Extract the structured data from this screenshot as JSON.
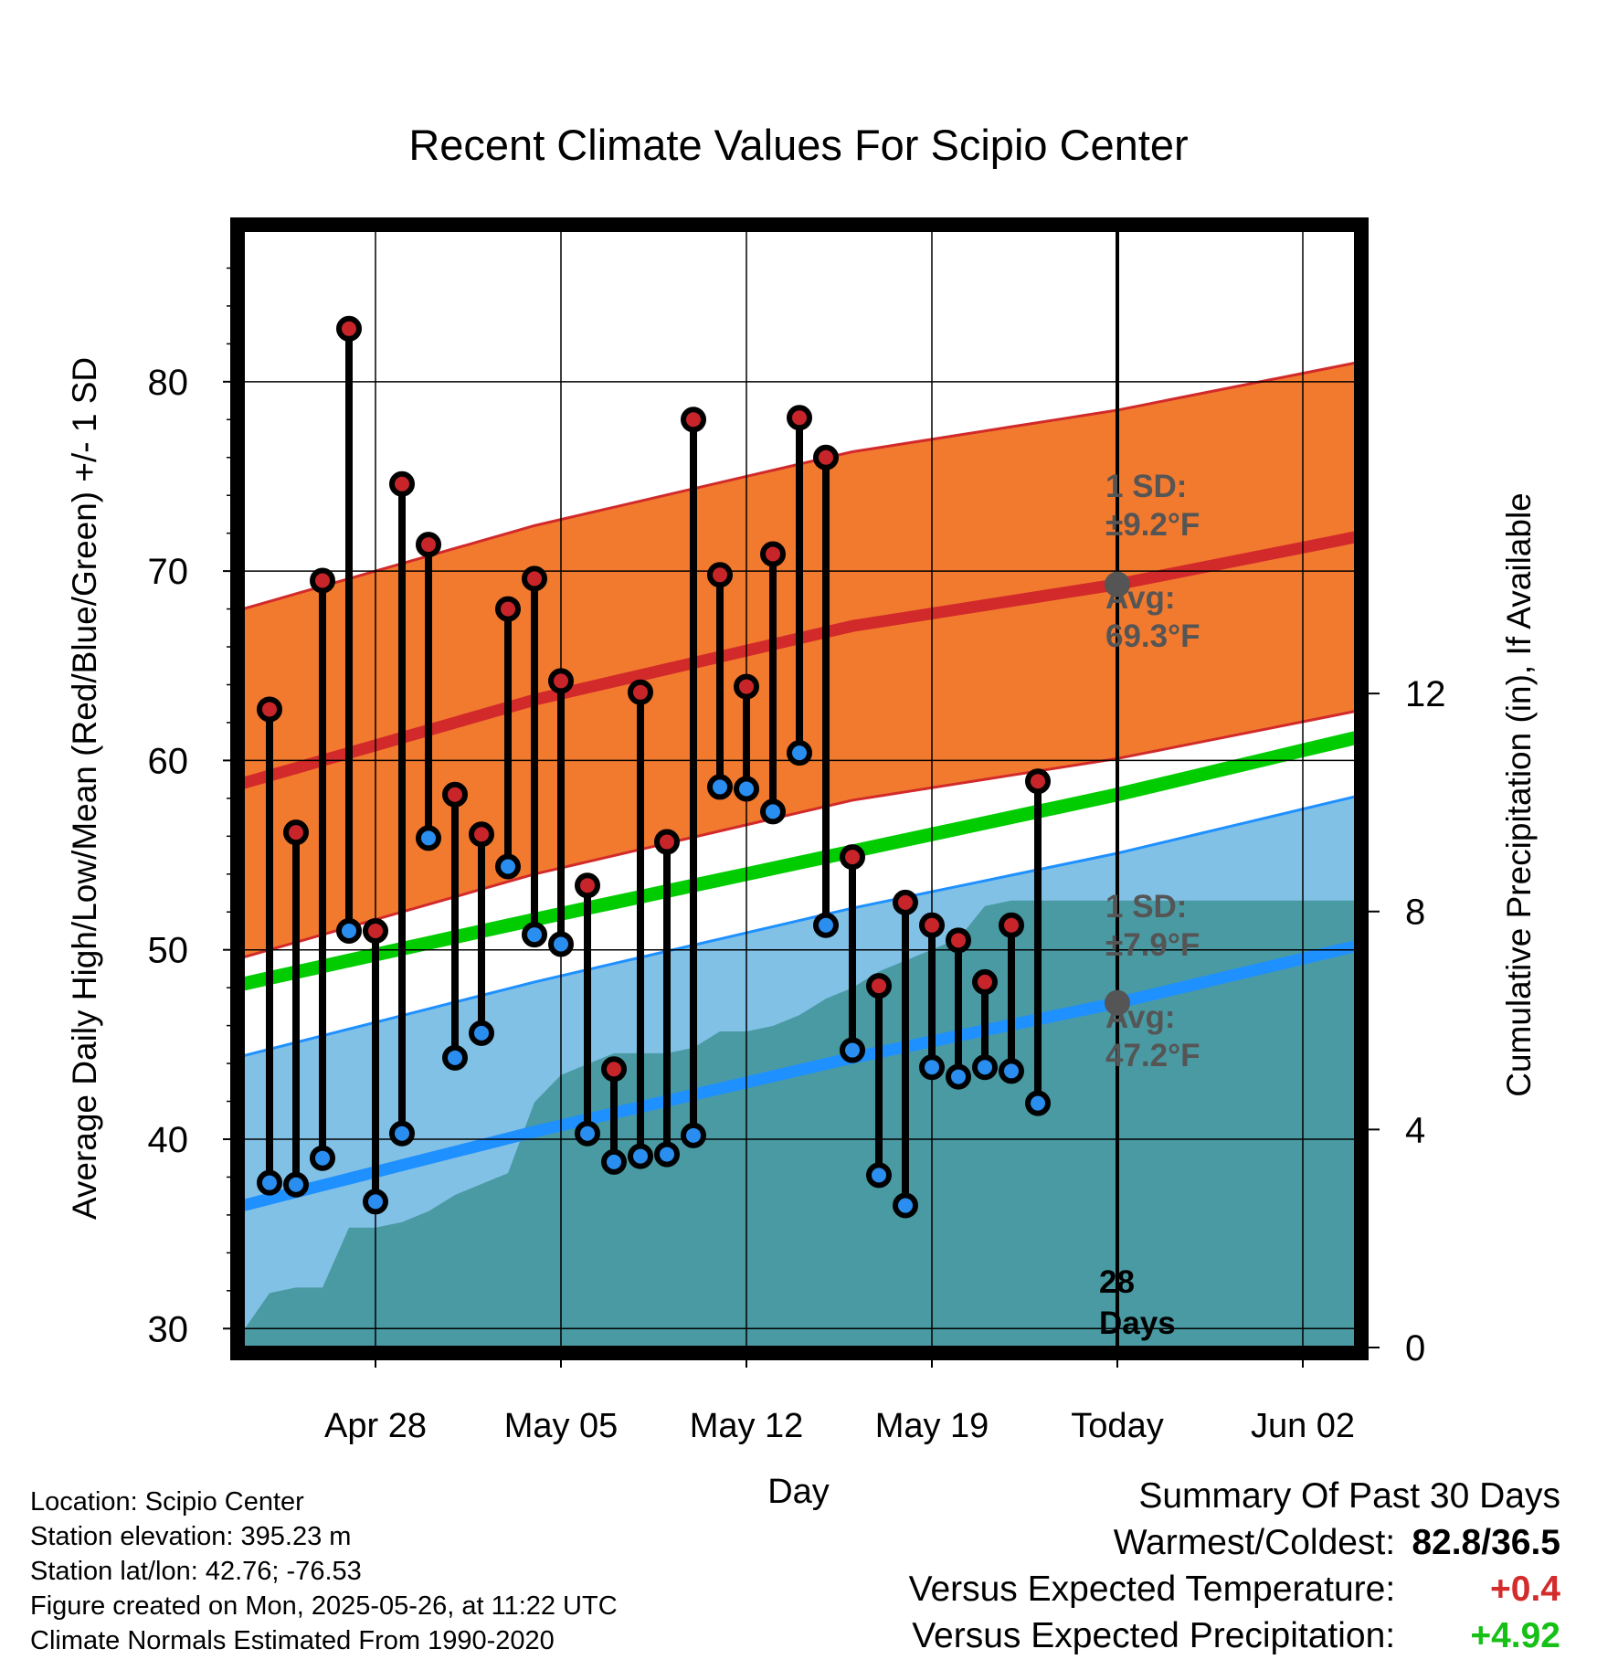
{
  "chart_data": {
    "type": "line",
    "title": "Recent Climate Values For Scipio Center",
    "xlabel": "Day",
    "ylabel": "Average Daily High/Low/Mean (Red/Blue/Green) +/- 1 SD",
    "y2label": "Cumulative Precipitation (in), If Available",
    "x_range": [
      "2025-04-23",
      "2025-06-04"
    ],
    "ylim": [
      29,
      88
    ],
    "y2lim": [
      0,
      20.5
    ],
    "y_ticks": [
      "30",
      "40",
      "50",
      "60",
      "70",
      "80"
    ],
    "y2_ticks": [
      "0",
      "4",
      "8",
      "12"
    ],
    "x_ticks": [
      {
        "date": "2025-04-28",
        "label": "Apr 28"
      },
      {
        "date": "2025-05-05",
        "label": "May 05"
      },
      {
        "date": "2025-05-12",
        "label": "May 12"
      },
      {
        "date": "2025-05-19",
        "label": "May 19"
      },
      {
        "date": "2025-05-26",
        "label": "Today"
      },
      {
        "date": "2025-06-02",
        "label": "Jun 02"
      }
    ],
    "grid": true,
    "normals": {
      "dates": [
        "2025-04-23",
        "2025-05-04",
        "2025-05-16",
        "2025-05-26",
        "2025-06-04"
      ],
      "avg_high": [
        58.8,
        63.2,
        67.1,
        69.3,
        71.8
      ],
      "high_sd": 9.2,
      "avg_mean": [
        48.2,
        51.6,
        55.2,
        58.2,
        61.2
      ],
      "avg_low": [
        36.5,
        40.4,
        44.3,
        47.2,
        50.2
      ],
      "low_sd": 7.9
    },
    "series": [
      {
        "dates": [
          "2025-04-24",
          "2025-04-25",
          "2025-04-26",
          "2025-04-27",
          "2025-04-28",
          "2025-04-29",
          "2025-04-30",
          "2025-05-01",
          "2025-05-02",
          "2025-05-03",
          "2025-05-04",
          "2025-05-05",
          "2025-05-06",
          "2025-05-07",
          "2025-05-08",
          "2025-05-09",
          "2025-05-10",
          "2025-05-11",
          "2025-05-12",
          "2025-05-13",
          "2025-05-14",
          "2025-05-15",
          "2025-05-16",
          "2025-05-17",
          "2025-05-18",
          "2025-05-19",
          "2025-05-20",
          "2025-05-21",
          "2025-05-22",
          "2025-05-23",
          "2025-05-24",
          "2025-05-25"
        ],
        "high": [
          62.7,
          56.2,
          69.5,
          82.8,
          51.0,
          74.6,
          71.4,
          58.2,
          56.1,
          68.0,
          69.6,
          64.2,
          53.4,
          43.7,
          63.6,
          55.7,
          78.0,
          69.8,
          63.9,
          70.9,
          78.1,
          76.0,
          54.9,
          48.1,
          52.5,
          51.3,
          50.5,
          48.3,
          51.3,
          58.9,
          null,
          null
        ],
        "low": [
          37.7,
          37.6,
          39.0,
          51.0,
          36.7,
          40.3,
          55.9,
          44.3,
          45.6,
          54.4,
          50.8,
          50.3,
          40.3,
          38.8,
          39.1,
          39.2,
          40.2,
          58.6,
          58.5,
          57.3,
          60.4,
          51.3,
          44.7,
          38.1,
          36.5,
          43.8,
          43.3,
          43.8,
          43.6,
          41.9,
          null,
          null
        ]
      }
    ],
    "precip_cumulative": {
      "dates": [
        "2025-04-23",
        "2025-04-24",
        "2025-04-25",
        "2025-04-26",
        "2025-04-27",
        "2025-04-28",
        "2025-04-29",
        "2025-04-30",
        "2025-05-01",
        "2025-05-02",
        "2025-05-03",
        "2025-05-04",
        "2025-05-05",
        "2025-05-06",
        "2025-05-07",
        "2025-05-08",
        "2025-05-09",
        "2025-05-10",
        "2025-05-11",
        "2025-05-12",
        "2025-05-13",
        "2025-05-14",
        "2025-05-15",
        "2025-05-16",
        "2025-05-17",
        "2025-05-18",
        "2025-05-19",
        "2025-05-20",
        "2025-05-21",
        "2025-05-22",
        "2025-05-23",
        "2025-05-24",
        "2025-05-25"
      ],
      "values": [
        0.3,
        1.0,
        1.1,
        1.1,
        2.2,
        2.2,
        2.3,
        2.5,
        2.8,
        3.0,
        3.2,
        4.5,
        5.0,
        5.2,
        5.4,
        5.4,
        5.4,
        5.5,
        5.8,
        5.8,
        5.9,
        6.1,
        6.4,
        6.6,
        6.9,
        7.1,
        7.3,
        7.5,
        8.1,
        8.2,
        8.2,
        8.2,
        8.2
      ]
    },
    "annotations": {
      "high_sd_label": "1 SD:",
      "high_sd_value": "±9.2°F",
      "high_avg_label": "Avg:",
      "high_avg_value": "69.3°F",
      "low_sd_label": "1 SD:",
      "low_sd_value": "±7.9°F",
      "low_avg_label": "Avg:",
      "low_avg_value": "47.2°F",
      "days_count": "28",
      "days_label": "Days"
    },
    "colors": {
      "high_band": "#f27a2f",
      "high_line": "#d22a2a",
      "low_band": "#82c1e6",
      "low_line": "#1e90ff",
      "mean_line": "#00cc00",
      "precip": "#4a9aa3",
      "high_dot": "#c8252a",
      "low_dot": "#2a8ef0"
    }
  },
  "location": {
    "location_line": "Location: Scipio Center",
    "elevation_line": "Station elevation: 395.23 m",
    "latlon_line": "Station lat/lon: 42.76; -76.53",
    "created_line": "Figure created on Mon, 2025-05-26, at 11:22 UTC",
    "normals_line": "Climate Normals Estimated From 1990-2020"
  },
  "summary": {
    "title": "Summary Of Past 30 Days",
    "warm_cold_label": "Warmest/Coldest:",
    "warm_cold_value": "82.8/36.5",
    "temp_label": "Versus Expected Temperature:",
    "temp_value": "+0.4",
    "precip_label": "Versus Expected Precipitation:",
    "precip_value": "+4.92"
  }
}
